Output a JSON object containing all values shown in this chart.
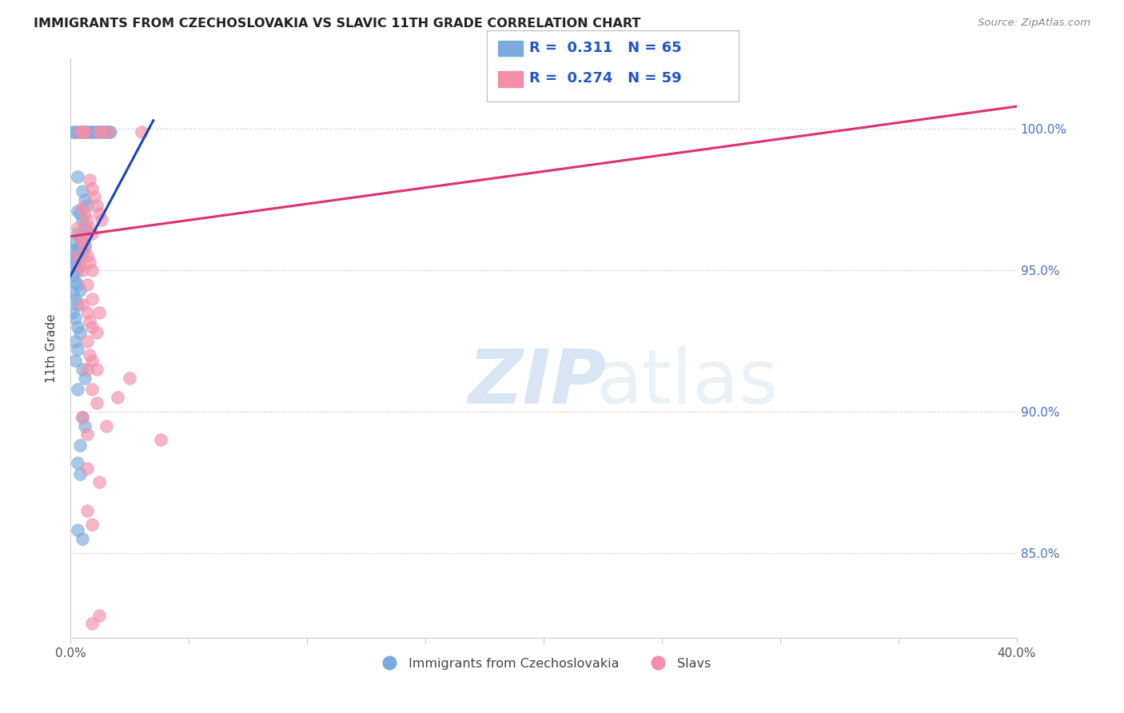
{
  "title": "IMMIGRANTS FROM CZECHOSLOVAKIA VS SLAVIC 11TH GRADE CORRELATION CHART",
  "source": "Source: ZipAtlas.com",
  "ylabel": "11th Grade",
  "xlim": [
    0.0,
    40.0
  ],
  "ylim": [
    82.0,
    102.5
  ],
  "ytick_vals": [
    85.0,
    90.0,
    95.0,
    100.0
  ],
  "ytick_labels": [
    "85.0%",
    "90.0%",
    "95.0%",
    "100.0%"
  ],
  "xtick_vals": [
    0.0,
    5.0,
    10.0,
    15.0,
    20.0,
    25.0,
    30.0,
    35.0,
    40.0
  ],
  "blue_color": "#7aabde",
  "pink_color": "#f48faa",
  "blue_line_color": "#1a44bb",
  "pink_line_color": "#e03070",
  "legend_blue_R": "0.311",
  "legend_blue_N": "65",
  "legend_pink_R": "0.274",
  "legend_pink_N": "59",
  "right_yaxis_color": "#4472c4",
  "grid_color": "#cccccc",
  "watermark_zip": "ZIP",
  "watermark_atlas": "atlas",
  "blue_scatter": [
    [
      0.1,
      99.9
    ],
    [
      0.2,
      99.9
    ],
    [
      0.3,
      99.9
    ],
    [
      0.4,
      99.9
    ],
    [
      0.5,
      99.9
    ],
    [
      0.6,
      99.9
    ],
    [
      0.7,
      99.9
    ],
    [
      0.8,
      99.9
    ],
    [
      0.9,
      99.9
    ],
    [
      1.0,
      99.9
    ],
    [
      1.1,
      99.9
    ],
    [
      1.2,
      99.9
    ],
    [
      1.3,
      99.9
    ],
    [
      1.4,
      99.9
    ],
    [
      1.5,
      99.9
    ],
    [
      1.6,
      99.9
    ],
    [
      1.7,
      99.9
    ],
    [
      0.3,
      98.3
    ],
    [
      0.5,
      97.8
    ],
    [
      0.6,
      97.5
    ],
    [
      0.7,
      97.3
    ],
    [
      0.3,
      97.1
    ],
    [
      0.4,
      97.0
    ],
    [
      0.5,
      96.8
    ],
    [
      0.6,
      96.6
    ],
    [
      0.7,
      96.4
    ],
    [
      0.3,
      96.3
    ],
    [
      0.4,
      96.1
    ],
    [
      0.5,
      96.0
    ],
    [
      0.6,
      95.9
    ],
    [
      0.2,
      96.0
    ],
    [
      0.3,
      95.8
    ],
    [
      0.4,
      95.7
    ],
    [
      0.5,
      95.6
    ],
    [
      0.1,
      95.7
    ],
    [
      0.2,
      95.5
    ],
    [
      0.3,
      95.4
    ],
    [
      0.1,
      95.3
    ],
    [
      0.2,
      95.2
    ],
    [
      0.3,
      95.0
    ],
    [
      0.1,
      94.8
    ],
    [
      0.2,
      94.6
    ],
    [
      0.3,
      94.5
    ],
    [
      0.4,
      94.3
    ],
    [
      0.1,
      94.2
    ],
    [
      0.2,
      94.0
    ],
    [
      0.3,
      93.8
    ],
    [
      0.1,
      93.5
    ],
    [
      0.2,
      93.3
    ],
    [
      0.3,
      93.0
    ],
    [
      0.4,
      92.8
    ],
    [
      0.2,
      92.5
    ],
    [
      0.3,
      92.2
    ],
    [
      0.2,
      91.8
    ],
    [
      0.5,
      91.5
    ],
    [
      0.6,
      91.2
    ],
    [
      0.3,
      90.8
    ],
    [
      0.5,
      89.8
    ],
    [
      0.6,
      89.5
    ],
    [
      0.4,
      88.8
    ],
    [
      0.3,
      88.2
    ],
    [
      0.4,
      87.8
    ],
    [
      0.3,
      85.8
    ],
    [
      0.5,
      85.5
    ]
  ],
  "pink_scatter": [
    [
      0.4,
      99.9
    ],
    [
      0.5,
      99.9
    ],
    [
      0.6,
      99.9
    ],
    [
      1.2,
      99.9
    ],
    [
      1.3,
      99.9
    ],
    [
      1.6,
      99.9
    ],
    [
      3.0,
      99.9
    ],
    [
      0.8,
      98.2
    ],
    [
      0.9,
      97.9
    ],
    [
      1.0,
      97.6
    ],
    [
      1.1,
      97.3
    ],
    [
      1.2,
      97.0
    ],
    [
      1.3,
      96.8
    ],
    [
      0.5,
      97.2
    ],
    [
      0.6,
      97.0
    ],
    [
      0.7,
      96.8
    ],
    [
      0.8,
      96.5
    ],
    [
      0.9,
      96.3
    ],
    [
      0.3,
      96.5
    ],
    [
      0.4,
      96.2
    ],
    [
      0.5,
      96.0
    ],
    [
      0.6,
      95.8
    ],
    [
      0.7,
      95.5
    ],
    [
      0.8,
      95.3
    ],
    [
      0.9,
      95.0
    ],
    [
      0.3,
      95.5
    ],
    [
      0.4,
      95.2
    ],
    [
      0.5,
      95.0
    ],
    [
      0.7,
      94.5
    ],
    [
      0.9,
      94.0
    ],
    [
      1.2,
      93.5
    ],
    [
      0.5,
      93.8
    ],
    [
      0.7,
      93.5
    ],
    [
      0.8,
      93.2
    ],
    [
      0.9,
      93.0
    ],
    [
      1.1,
      92.8
    ],
    [
      0.7,
      92.5
    ],
    [
      0.8,
      92.0
    ],
    [
      0.9,
      91.8
    ],
    [
      1.1,
      91.5
    ],
    [
      2.5,
      91.2
    ],
    [
      0.9,
      90.8
    ],
    [
      1.1,
      90.3
    ],
    [
      0.7,
      91.5
    ],
    [
      2.0,
      90.5
    ],
    [
      1.5,
      89.5
    ],
    [
      0.5,
      89.8
    ],
    [
      0.7,
      89.2
    ],
    [
      3.8,
      89.0
    ],
    [
      0.7,
      88.0
    ],
    [
      1.2,
      87.5
    ],
    [
      0.7,
      86.5
    ],
    [
      0.9,
      86.0
    ],
    [
      1.2,
      82.8
    ],
    [
      0.9,
      82.5
    ]
  ],
  "blue_trendline_x": [
    0.0,
    3.5
  ],
  "blue_trendline_y": [
    94.8,
    100.3
  ],
  "pink_trendline_x": [
    0.0,
    40.0
  ],
  "pink_trendline_y": [
    96.2,
    100.8
  ]
}
